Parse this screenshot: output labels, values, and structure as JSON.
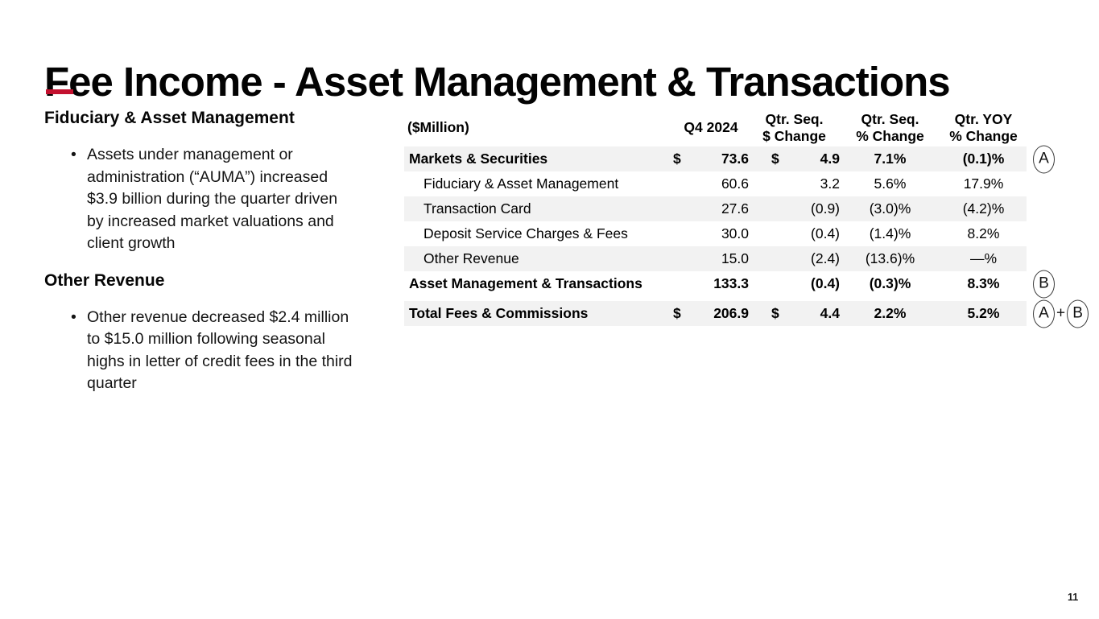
{
  "slide": {
    "title": "Fee Income - Asset Management & Transactions",
    "page_number": "11"
  },
  "colors": {
    "accent_red": "#C3112F",
    "stripe_gray": "#F2F2F2",
    "text_black": "#000000"
  },
  "left_panel": {
    "bullet_glyph": "•",
    "sections": [
      {
        "heading": "Fiduciary & Asset Management",
        "bullets": [
          "Assets under management or administration (“AUMA”) increased $3.9 billion during the quarter driven by increased market valuations and client growth"
        ]
      },
      {
        "heading": "Other Revenue",
        "bullets": [
          "Other revenue decreased $2.4 million to $15.0 million following seasonal highs in letter of credit fees in the third quarter"
        ]
      }
    ]
  },
  "table": {
    "unit_label": "($Million)",
    "header_columns": [
      {
        "lines": [
          "Q4 2024"
        ]
      },
      {
        "lines": [
          "Qtr. Seq.",
          "$ Change"
        ]
      },
      {
        "lines": [
          "Qtr. Seq.",
          "% Change"
        ]
      },
      {
        "lines": [
          "Qtr. YOY",
          "% Change"
        ]
      }
    ],
    "rows": [
      {
        "label": "Markets & Securities",
        "currency_q4": "$",
        "q4_2024": "73.6",
        "currency_change": "$",
        "dollar_change": "4.9",
        "seq_pct_change": "7.1%",
        "yoy_pct_change": "(0.1)%",
        "bold": true,
        "indent": false,
        "stripe": true,
        "gap_before": false,
        "annotation": "A"
      },
      {
        "label": "Fiduciary & Asset Management",
        "currency_q4": "",
        "q4_2024": "60.6",
        "currency_change": "",
        "dollar_change": "3.2",
        "seq_pct_change": "5.6%",
        "yoy_pct_change": "17.9%",
        "bold": false,
        "indent": true,
        "stripe": false,
        "gap_before": false,
        "annotation": ""
      },
      {
        "label": "Transaction Card",
        "currency_q4": "",
        "q4_2024": "27.6",
        "currency_change": "",
        "dollar_change": "(0.9)",
        "seq_pct_change": "(3.0)%",
        "yoy_pct_change": "(4.2)%",
        "bold": false,
        "indent": true,
        "stripe": true,
        "gap_before": false,
        "annotation": ""
      },
      {
        "label": "Deposit Service Charges & Fees",
        "currency_q4": "",
        "q4_2024": "30.0",
        "currency_change": "",
        "dollar_change": "(0.4)",
        "seq_pct_change": "(1.4)%",
        "yoy_pct_change": "8.2%",
        "bold": false,
        "indent": true,
        "stripe": false,
        "gap_before": false,
        "annotation": ""
      },
      {
        "label": "Other Revenue",
        "currency_q4": "",
        "q4_2024": "15.0",
        "currency_change": "",
        "dollar_change": "(2.4)",
        "seq_pct_change": "(13.6)%",
        "yoy_pct_change": "—%",
        "bold": false,
        "indent": true,
        "stripe": true,
        "gap_before": false,
        "annotation": ""
      },
      {
        "label": "Asset Management & Transactions",
        "currency_q4": "",
        "q4_2024": "133.3",
        "currency_change": "",
        "dollar_change": "(0.4)",
        "seq_pct_change": "(0.3)%",
        "yoy_pct_change": "8.3%",
        "bold": true,
        "indent": false,
        "stripe": false,
        "gap_before": false,
        "annotation": "B"
      },
      {
        "label": "Total Fees & Commissions",
        "currency_q4": "$",
        "q4_2024": "206.9",
        "currency_change": "$",
        "dollar_change": "4.4",
        "seq_pct_change": "2.2%",
        "yoy_pct_change": "5.2%",
        "bold": true,
        "indent": false,
        "stripe": true,
        "gap_before": true,
        "annotation": "A+B"
      }
    ]
  }
}
